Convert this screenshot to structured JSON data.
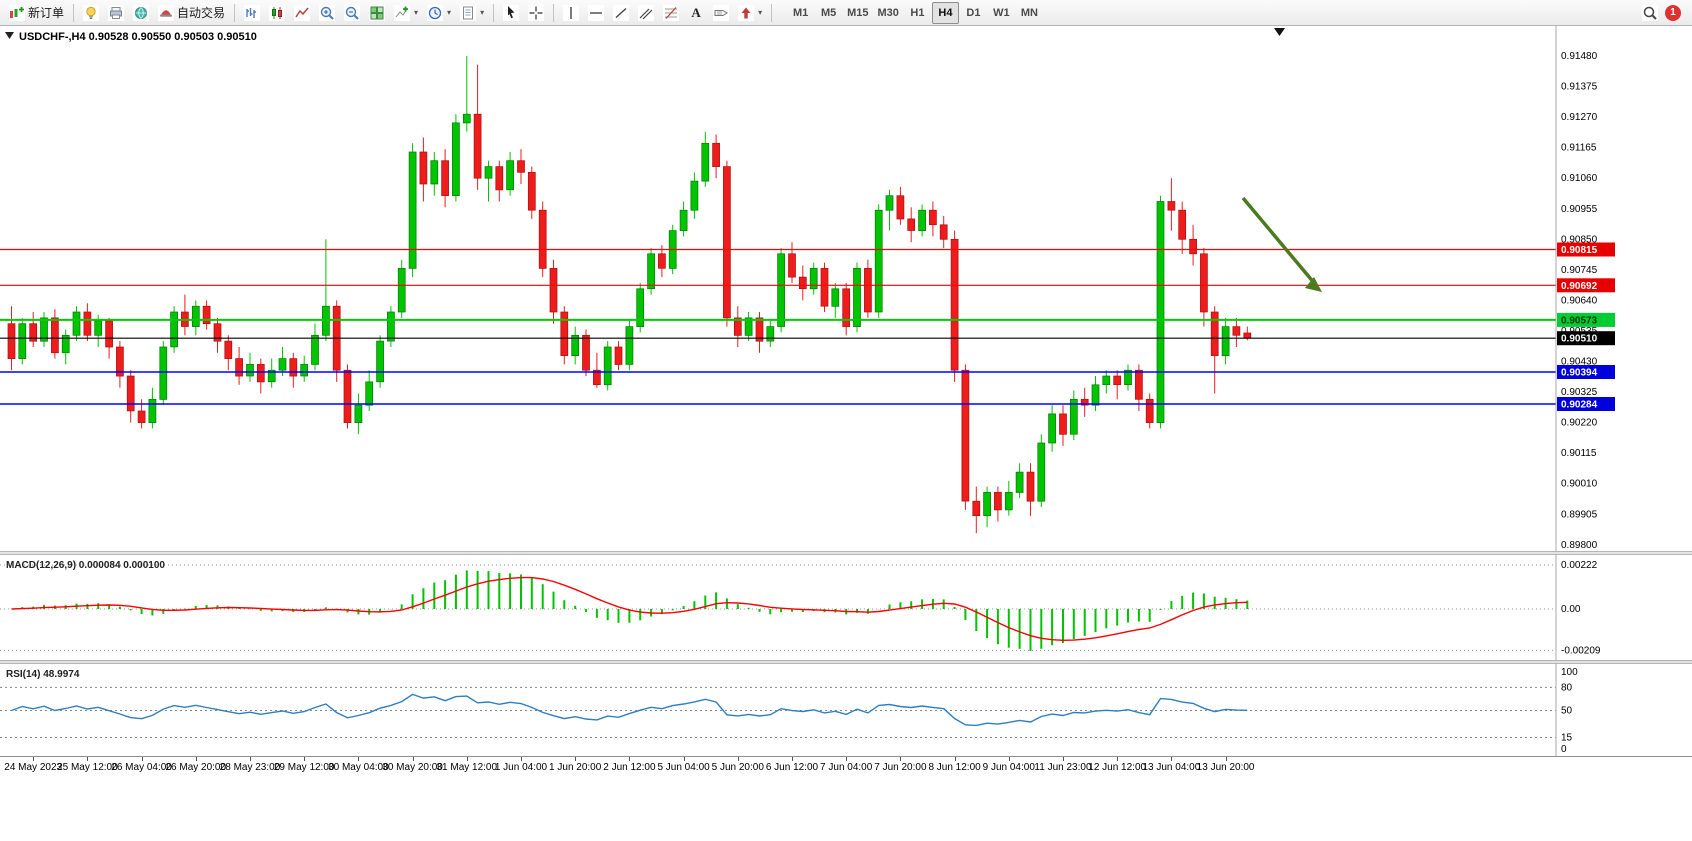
{
  "window": {
    "symbol_period": "USDCHF-,H4",
    "ohlc": "0.90528 0.90550 0.90503 0.90510"
  },
  "toolbar": {
    "new_order_label": "新订单",
    "auto_trading_label": "自动交易",
    "text_tool_glyph": "A",
    "caret_glyph": "▾",
    "timeframes": [
      "M1",
      "M5",
      "M15",
      "M30",
      "H1",
      "H4",
      "D1",
      "W1",
      "MN"
    ],
    "active_timeframe": "H4",
    "notification_count": "1"
  },
  "chart_data": {
    "type": "candlestick",
    "symbol": "USDCHF-",
    "timeframe": "H4",
    "colors": {
      "up": "#00c400",
      "up_border": "#007700",
      "down": "#ef1c1c",
      "down_border": "#a80f0f",
      "macd_hist": "#00c400",
      "macd_signal": "#ff0000",
      "rsi_line": "#2e7fc2",
      "arrow": "#4b7a1f"
    },
    "y_axis_labels": [
      "0.91480",
      "0.91375",
      "0.91270",
      "0.91165",
      "0.91060",
      "0.90955",
      "0.90850",
      "0.90745",
      "0.90640",
      "0.90535",
      "0.90430",
      "0.90325",
      "0.90220",
      "0.90115",
      "0.90010",
      "0.89905",
      "0.89800"
    ],
    "price_lines": [
      {
        "price": 0.90815,
        "label": "0.90815",
        "color": "#ff0000",
        "tag_bg": "#e60000",
        "tag_text": "#ffffff",
        "width": 1.2
      },
      {
        "price": 0.90692,
        "label": "0.90692",
        "color": "#ff0000",
        "tag_bg": "#e60000",
        "tag_text": "#ffffff",
        "width": 1.2
      },
      {
        "price": 0.90573,
        "label": "0.90573",
        "color": "#00cc00",
        "tag_bg": "#00cc33",
        "tag_text": "#003300",
        "width": 2
      },
      {
        "price": 0.9051,
        "label": "0.90510",
        "color": "#000000",
        "tag_bg": "#000000",
        "tag_text": "#ffffff",
        "width": 1.2
      },
      {
        "price": 0.90394,
        "label": "0.90394",
        "color": "#0000ff",
        "tag_bg": "#0000dd",
        "tag_text": "#ffffff",
        "width": 1.6
      },
      {
        "price": 0.90284,
        "label": "0.90284",
        "color": "#0000ff",
        "tag_bg": "#0000dd",
        "tag_text": "#ffffff",
        "width": 1.6
      }
    ],
    "x_axis_labels": [
      "24 May 2023",
      "25 May 12:00",
      "26 May 04:00",
      "26 May 20:00",
      "28 May 23:00",
      "29 May 12:00",
      "30 May 04:00",
      "30 May 20:00",
      "31 May 12:00",
      "1 Jun 04:00",
      "1 Jun 20:00",
      "2 Jun 12:00",
      "5 Jun 04:00",
      "5 Jun 20:00",
      "6 Jun 12:00",
      "7 Jun 04:00",
      "7 Jun 20:00",
      "8 Jun 12:00",
      "9 Jun 04:00",
      "11 Jun 23:00",
      "12 Jun 12:00",
      "13 Jun 04:00",
      "13 Jun 20:00"
    ],
    "annotation_arrow": {
      "from": [
        1243,
        172
      ],
      "to": [
        1322,
        266
      ]
    },
    "indicators": {
      "macd": {
        "label": "MACD(12,26,9)",
        "value_1": "0.000084",
        "value_2": "0.000100",
        "axis": [
          {
            "v": 0.00222,
            "label": "0.00222"
          },
          {
            "v": 0,
            "label": "0.00"
          },
          {
            "v": -0.00209,
            "label": "-0.00209"
          }
        ]
      },
      "rsi": {
        "label": "RSI(14)",
        "value": "48.9974",
        "axis": [
          {
            "v": 100,
            "label": "100"
          },
          {
            "v": 80,
            "label": "80"
          },
          {
            "v": 50,
            "label": "50"
          },
          {
            "v": 15,
            "label": "15"
          },
          {
            "v": 0,
            "label": "0"
          }
        ],
        "levels": [
          80,
          50,
          15
        ]
      }
    },
    "candles": [
      [
        0.9056,
        0.9062,
        0.904,
        0.9044
      ],
      [
        0.9044,
        0.9058,
        0.9042,
        0.9056
      ],
      [
        0.9056,
        0.906,
        0.9048,
        0.905
      ],
      [
        0.905,
        0.906,
        0.9048,
        0.9058
      ],
      [
        0.9058,
        0.9061,
        0.9044,
        0.9046
      ],
      [
        0.9046,
        0.9054,
        0.9042,
        0.9052
      ],
      [
        0.9052,
        0.9062,
        0.905,
        0.906
      ],
      [
        0.906,
        0.9063,
        0.905,
        0.9052
      ],
      [
        0.9052,
        0.9059,
        0.9048,
        0.9057
      ],
      [
        0.9057,
        0.9058,
        0.9044,
        0.9048
      ],
      [
        0.9048,
        0.905,
        0.9034,
        0.9038
      ],
      [
        0.9038,
        0.904,
        0.9022,
        0.9026
      ],
      [
        0.9026,
        0.903,
        0.902,
        0.9022
      ],
      [
        0.9022,
        0.9034,
        0.902,
        0.903
      ],
      [
        0.903,
        0.905,
        0.9028,
        0.9048
      ],
      [
        0.9048,
        0.9062,
        0.9046,
        0.906
      ],
      [
        0.906,
        0.9066,
        0.9052,
        0.9055
      ],
      [
        0.9055,
        0.9064,
        0.9052,
        0.9062
      ],
      [
        0.9062,
        0.9064,
        0.9054,
        0.9056
      ],
      [
        0.9056,
        0.9058,
        0.9046,
        0.905
      ],
      [
        0.905,
        0.9052,
        0.904,
        0.9044
      ],
      [
        0.9044,
        0.9048,
        0.9035,
        0.9038
      ],
      [
        0.9038,
        0.9046,
        0.9036,
        0.9042
      ],
      [
        0.9042,
        0.9044,
        0.9032,
        0.9036
      ],
      [
        0.9036,
        0.9044,
        0.9034,
        0.904
      ],
      [
        0.904,
        0.9048,
        0.9038,
        0.9044
      ],
      [
        0.9044,
        0.9046,
        0.9034,
        0.9038
      ],
      [
        0.9038,
        0.9045,
        0.9036,
        0.9042
      ],
      [
        0.9042,
        0.9056,
        0.904,
        0.9052
      ],
      [
        0.9052,
        0.9085,
        0.905,
        0.9062
      ],
      [
        0.9062,
        0.9064,
        0.9036,
        0.904
      ],
      [
        0.904,
        0.9042,
        0.902,
        0.9022
      ],
      [
        0.9022,
        0.9032,
        0.9018,
        0.9028
      ],
      [
        0.9028,
        0.904,
        0.9026,
        0.9036
      ],
      [
        0.9036,
        0.9052,
        0.9034,
        0.905
      ],
      [
        0.905,
        0.9062,
        0.9048,
        0.906
      ],
      [
        0.906,
        0.9078,
        0.9058,
        0.9075
      ],
      [
        0.9075,
        0.9118,
        0.9072,
        0.9115
      ],
      [
        0.9115,
        0.912,
        0.9098,
        0.9104
      ],
      [
        0.9104,
        0.9115,
        0.91,
        0.9112
      ],
      [
        0.9112,
        0.9116,
        0.9096,
        0.91
      ],
      [
        0.91,
        0.9128,
        0.9098,
        0.9125
      ],
      [
        0.9125,
        0.9148,
        0.9122,
        0.9128
      ],
      [
        0.9128,
        0.9145,
        0.9102,
        0.9106
      ],
      [
        0.9106,
        0.9112,
        0.9098,
        0.911
      ],
      [
        0.911,
        0.9112,
        0.9098,
        0.9102
      ],
      [
        0.9102,
        0.9115,
        0.91,
        0.9112
      ],
      [
        0.9112,
        0.9116,
        0.9104,
        0.9108
      ],
      [
        0.9108,
        0.911,
        0.9092,
        0.9095
      ],
      [
        0.9095,
        0.9098,
        0.9072,
        0.9075
      ],
      [
        0.9075,
        0.9078,
        0.9056,
        0.906
      ],
      [
        0.906,
        0.9062,
        0.9042,
        0.9045
      ],
      [
        0.9045,
        0.9055,
        0.9042,
        0.9052
      ],
      [
        0.9052,
        0.9054,
        0.9038,
        0.904
      ],
      [
        0.904,
        0.9046,
        0.9034,
        0.9035
      ],
      [
        0.9035,
        0.905,
        0.9033,
        0.9048
      ],
      [
        0.9048,
        0.905,
        0.904,
        0.9042
      ],
      [
        0.9042,
        0.9057,
        0.904,
        0.9055
      ],
      [
        0.9055,
        0.907,
        0.9053,
        0.9068
      ],
      [
        0.9068,
        0.9082,
        0.9066,
        0.908
      ],
      [
        0.908,
        0.9083,
        0.9072,
        0.9075
      ],
      [
        0.9075,
        0.909,
        0.9073,
        0.9088
      ],
      [
        0.9088,
        0.9098,
        0.9086,
        0.9095
      ],
      [
        0.9095,
        0.9108,
        0.9092,
        0.9105
      ],
      [
        0.9105,
        0.9122,
        0.9103,
        0.9118
      ],
      [
        0.9118,
        0.9121,
        0.9106,
        0.911
      ],
      [
        0.911,
        0.9112,
        0.9055,
        0.9058
      ],
      [
        0.9058,
        0.9062,
        0.9048,
        0.9052
      ],
      [
        0.9052,
        0.906,
        0.905,
        0.9058
      ],
      [
        0.9058,
        0.906,
        0.9046,
        0.905
      ],
      [
        0.905,
        0.9057,
        0.9048,
        0.9055
      ],
      [
        0.9055,
        0.9082,
        0.9053,
        0.908
      ],
      [
        0.908,
        0.9084,
        0.907,
        0.9072
      ],
      [
        0.9072,
        0.9076,
        0.9064,
        0.9068
      ],
      [
        0.9068,
        0.9077,
        0.9066,
        0.9075
      ],
      [
        0.9075,
        0.9077,
        0.906,
        0.9062
      ],
      [
        0.9062,
        0.907,
        0.9058,
        0.9068
      ],
      [
        0.9068,
        0.907,
        0.9052,
        0.9055
      ],
      [
        0.9055,
        0.9077,
        0.9053,
        0.9075
      ],
      [
        0.9075,
        0.9078,
        0.9058,
        0.906
      ],
      [
        0.906,
        0.9097,
        0.9058,
        0.9095
      ],
      [
        0.9095,
        0.9102,
        0.9088,
        0.91
      ],
      [
        0.91,
        0.9103,
        0.909,
        0.9092
      ],
      [
        0.9092,
        0.9096,
        0.9084,
        0.9088
      ],
      [
        0.9088,
        0.9097,
        0.9086,
        0.9095
      ],
      [
        0.9095,
        0.9098,
        0.9086,
        0.909
      ],
      [
        0.909,
        0.9093,
        0.9082,
        0.9085
      ],
      [
        0.9085,
        0.9088,
        0.9036,
        0.904
      ],
      [
        0.904,
        0.9042,
        0.8992,
        0.8995
      ],
      [
        0.8995,
        0.9,
        0.8984,
        0.899
      ],
      [
        0.899,
        0.9,
        0.8986,
        0.8998
      ],
      [
        0.8998,
        0.9,
        0.8988,
        0.8992
      ],
      [
        0.8992,
        0.9002,
        0.899,
        0.8998
      ],
      [
        0.8998,
        0.9008,
        0.8996,
        0.9005
      ],
      [
        0.9005,
        0.9008,
        0.899,
        0.8995
      ],
      [
        0.8995,
        0.9018,
        0.8993,
        0.9015
      ],
      [
        0.9015,
        0.9028,
        0.9012,
        0.9025
      ],
      [
        0.9025,
        0.9028,
        0.9014,
        0.9018
      ],
      [
        0.9018,
        0.9033,
        0.9016,
        0.903
      ],
      [
        0.903,
        0.9034,
        0.9024,
        0.9028
      ],
      [
        0.9028,
        0.9038,
        0.9026,
        0.9035
      ],
      [
        0.9035,
        0.904,
        0.9032,
        0.9038
      ],
      [
        0.9038,
        0.904,
        0.903,
        0.9035
      ],
      [
        0.9035,
        0.9042,
        0.9033,
        0.904
      ],
      [
        0.904,
        0.9042,
        0.9026,
        0.903
      ],
      [
        0.903,
        0.9032,
        0.902,
        0.9022
      ],
      [
        0.9022,
        0.91,
        0.902,
        0.9098
      ],
      [
        0.9098,
        0.9106,
        0.9088,
        0.9095
      ],
      [
        0.9095,
        0.9098,
        0.908,
        0.9085
      ],
      [
        0.9085,
        0.909,
        0.9076,
        0.908
      ],
      [
        0.908,
        0.9082,
        0.9055,
        0.906
      ],
      [
        0.906,
        0.9062,
        0.9032,
        0.9045
      ],
      [
        0.9045,
        0.9058,
        0.9042,
        0.9055
      ],
      [
        0.9055,
        0.9058,
        0.9048,
        0.9052
      ],
      [
        0.90528,
        0.9055,
        0.90503,
        0.9051
      ]
    ]
  }
}
